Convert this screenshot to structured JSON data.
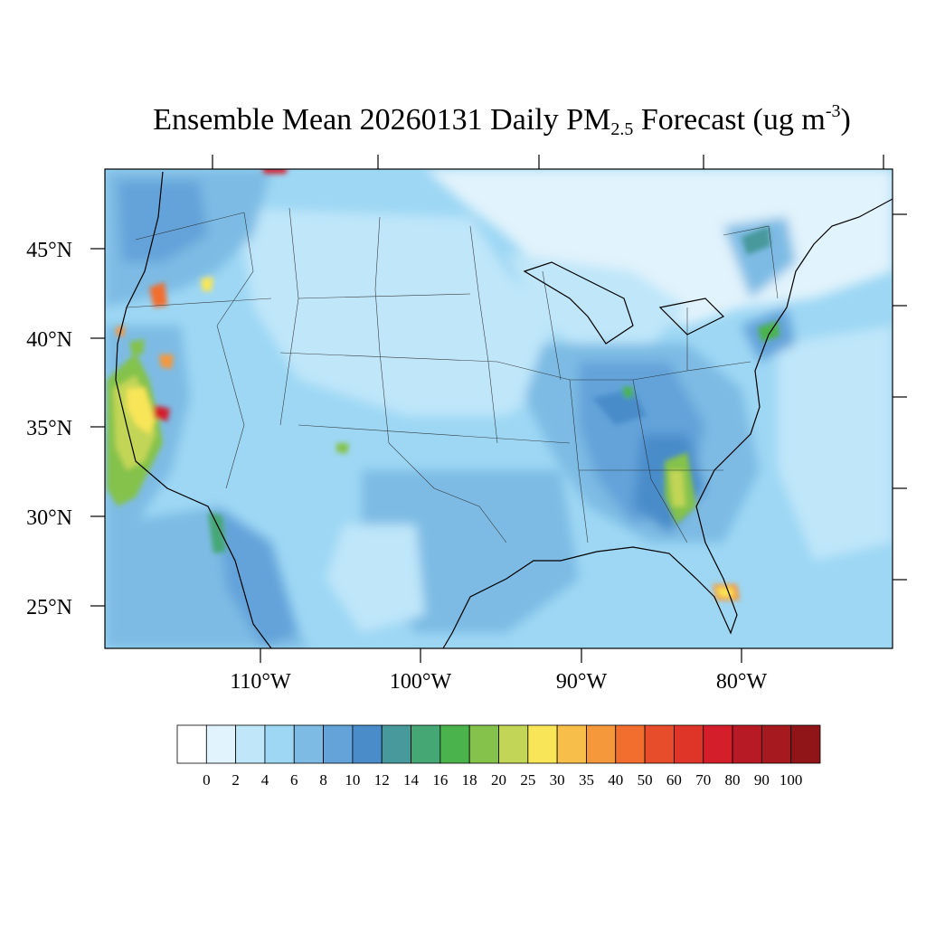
{
  "title": {
    "prefix": "Ensemble Mean 20260131 Daily PM",
    "subscript": "2.5",
    "middle": " Forecast (ug m",
    "superscript": "-3",
    "suffix": ")"
  },
  "axes": {
    "lat_labels": [
      "45°N",
      "40°N",
      "35°N",
      "30°N",
      "25°N"
    ],
    "lon_labels": [
      "110°W",
      "100°W",
      "90°W",
      "80°W"
    ]
  },
  "colorbar": {
    "labels": [
      "0",
      "2",
      "4",
      "6",
      "8",
      "10",
      "12",
      "14",
      "16",
      "18",
      "20",
      "25",
      "30",
      "35",
      "40",
      "50",
      "60",
      "70",
      "80",
      "90",
      "100"
    ],
    "colors": [
      "#ffffff",
      "#e1f3fc",
      "#bfe6f9",
      "#9dd7f4",
      "#7dbbe4",
      "#63a3d9",
      "#4a8cca",
      "#47999c",
      "#44a774",
      "#4bb34c",
      "#84c24c",
      "#c2d556",
      "#f8e558",
      "#f7be4a",
      "#f5983c",
      "#f26e2f",
      "#e84d2b",
      "#df3528",
      "#d41f2a",
      "#b71a24",
      "#a5191f",
      "#8f1519"
    ]
  },
  "map_data": {
    "projection": "lambert-conformal",
    "background_level_color": "#9dd7f4",
    "regions": [
      {
        "name": "canada-north",
        "color": "#e1f3fc"
      },
      {
        "name": "pacific-nw",
        "color": "#7dbbe4"
      },
      {
        "name": "northern-plains",
        "color": "#bfe6f9"
      },
      {
        "name": "southeast",
        "color": "#63a3d9"
      },
      {
        "name": "california-central-valley",
        "color": "#f8e558"
      },
      {
        "name": "south-florida-hotspot",
        "color": "#f5983c"
      }
    ]
  }
}
